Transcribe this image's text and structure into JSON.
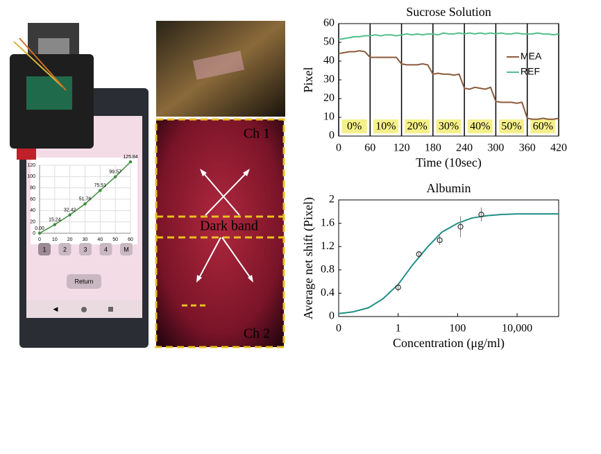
{
  "chart_data": [
    {
      "type": "line",
      "title": "Sucrose Solution",
      "xlabel": "Time (10sec)",
      "ylabel": "Pixel",
      "x": [
        0,
        10,
        20,
        30,
        40,
        50,
        60,
        70,
        80,
        90,
        100,
        110,
        120,
        130,
        140,
        150,
        160,
        170,
        180,
        190,
        200,
        210,
        220,
        230,
        240,
        250,
        260,
        270,
        280,
        290,
        300,
        310,
        320,
        330,
        340,
        350,
        360,
        370,
        380,
        390,
        400,
        410,
        420
      ],
      "series": [
        {
          "name": "MEA",
          "color": "#8b5a3c",
          "values": [
            44,
            44.5,
            45,
            45,
            45.5,
            45,
            42,
            42,
            42,
            42,
            42,
            42,
            38.5,
            38,
            38,
            38,
            38.5,
            38,
            33,
            33.5,
            33,
            33,
            32.5,
            33,
            25.5,
            25,
            26,
            25.5,
            25,
            26,
            18.5,
            18,
            18,
            18,
            17.5,
            18,
            9.5,
            9,
            9,
            9.5,
            9,
            9,
            9.5
          ]
        },
        {
          "name": "REF",
          "color": "#4fc08a",
          "values": [
            51.5,
            52,
            52.5,
            53,
            53,
            53.5,
            53.5,
            54,
            53.5,
            54,
            54,
            53.5,
            54,
            54.5,
            54,
            54.5,
            54,
            54.5,
            54.5,
            54,
            55,
            54.5,
            54.5,
            55,
            54.5,
            55,
            54.5,
            55,
            54.5,
            55,
            54.5,
            55,
            54.5,
            54.5,
            55,
            54.5,
            54.5,
            54.5,
            55,
            54.5,
            54.5,
            54,
            54.5
          ]
        }
      ],
      "annotations": [
        "0%",
        "10%",
        "20%",
        "30%",
        "40%",
        "50%",
        "60%"
      ],
      "xlim": [
        0,
        420
      ],
      "xticks": [
        0,
        60,
        120,
        180,
        240,
        300,
        360,
        420
      ],
      "ylim": [
        0,
        60
      ],
      "yticks": [
        0,
        10,
        20,
        30,
        40,
        50,
        60
      ],
      "xgrid": true,
      "legend": "right"
    },
    {
      "type": "scatter-fit",
      "title": "Albumin",
      "xlabel": "Concentration (μg/ml)",
      "ylabel": "Average net shift (Pixel)",
      "xscale": "log",
      "points": {
        "x": [
          1,
          5,
          25,
          125,
          625
        ],
        "values": [
          0.5,
          1.07,
          1.31,
          1.54,
          1.75
        ],
        "errors": [
          0.07,
          0.03,
          0.08,
          0.18,
          0.12
        ],
        "color": "#333333"
      },
      "fit": {
        "x": [
          0.01,
          0.03,
          0.1,
          0.3,
          1,
          3,
          10,
          30,
          100,
          300,
          1000,
          3000,
          10000,
          30000,
          100000,
          250000
        ],
        "values": [
          0.05,
          0.08,
          0.15,
          0.3,
          0.55,
          0.88,
          1.2,
          1.45,
          1.6,
          1.69,
          1.73,
          1.75,
          1.76,
          1.76,
          1.76,
          1.76
        ],
        "color": "#1f8f86"
      },
      "xlim": [
        0.01,
        250000
      ],
      "xticks": [
        {
          "value": 0.01,
          "label": "0"
        },
        1,
        100,
        {
          "value": 10000,
          "label": "10,000"
        }
      ],
      "ylim": [
        0,
        2
      ],
      "yticks": [
        0,
        0.4,
        0.8,
        1.2,
        1.6,
        2
      ]
    },
    {
      "type": "line",
      "x": [
        0,
        10,
        20,
        30,
        40,
        50,
        60
      ],
      "values": [
        0,
        15.24,
        32.42,
        51.76,
        75.51,
        99.57,
        125.84
      ],
      "value_labels": [
        "0.00",
        "15.24",
        "32.42",
        "51.76",
        "75.51",
        "99.57",
        "125.84"
      ],
      "color": "#3c8c3c",
      "xlim": [
        0,
        60
      ],
      "xticks": [
        0,
        10,
        20,
        30,
        40,
        50,
        60
      ],
      "ylim": [
        0,
        120
      ],
      "yticks": [
        0,
        20,
        40,
        60,
        80,
        100,
        120
      ],
      "grid": true
    }
  ],
  "phone": {
    "buttons": [
      "1",
      "2",
      "3",
      "4",
      "M"
    ],
    "return_button": "Return"
  },
  "micrograph": {
    "channel_1": "Ch 1",
    "channel_2": "Ch 2",
    "band": "Dark band"
  }
}
